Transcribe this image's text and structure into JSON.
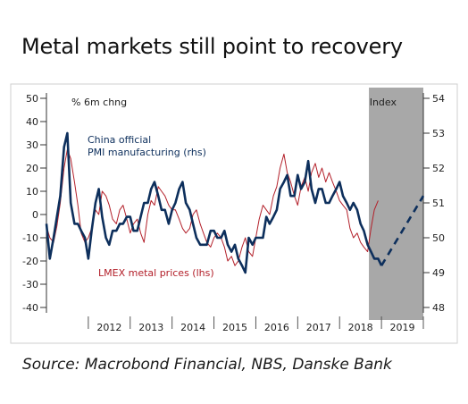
{
  "title": "Metal markets still point to recovery",
  "source": "Source: Macrobond Financial, NBS, Danske Bank",
  "colors": {
    "pmi": "#0d2f5c",
    "lmex": "#b3202a",
    "forecast_band": "#a8a8a8",
    "axis": "#333333"
  },
  "chart_data": {
    "type": "line",
    "left_axis_label": "% 6m chng",
    "right_axis_label": "Index",
    "left_ylim": [
      -40,
      50
    ],
    "left_ticks": [
      50,
      40,
      30,
      20,
      10,
      0,
      -10,
      -20,
      -30,
      -40
    ],
    "right_ylim": [
      48,
      54
    ],
    "right_ticks": [
      54,
      53,
      52,
      51,
      50,
      49,
      48
    ],
    "xlim": [
      2011.0,
      2020.0
    ],
    "x_ticks": [
      "2012",
      "2013",
      "2014",
      "2015",
      "2016",
      "2017",
      "2018",
      "2019"
    ],
    "forecast_band": [
      2018.7,
      2020.0
    ],
    "series": [
      {
        "name": "China official PMI manufacturing (rhs)",
        "axis": "right",
        "style": "solid",
        "points": [
          [
            2011.0,
            50.4
          ],
          [
            2011.08,
            49.4
          ],
          [
            2011.17,
            50.0
          ],
          [
            2011.25,
            50.6
          ],
          [
            2011.33,
            51.2
          ],
          [
            2011.42,
            52.6
          ],
          [
            2011.5,
            53.0
          ],
          [
            2011.58,
            51.0
          ],
          [
            2011.67,
            50.4
          ],
          [
            2011.75,
            50.4
          ],
          [
            2011.83,
            50.2
          ],
          [
            2011.92,
            50.0
          ],
          [
            2012.0,
            49.4
          ],
          [
            2012.08,
            50.2
          ],
          [
            2012.17,
            51.0
          ],
          [
            2012.25,
            51.4
          ],
          [
            2012.33,
            50.6
          ],
          [
            2012.42,
            50.0
          ],
          [
            2012.5,
            49.8
          ],
          [
            2012.58,
            50.2
          ],
          [
            2012.67,
            50.2
          ],
          [
            2012.75,
            50.4
          ],
          [
            2012.83,
            50.4
          ],
          [
            2012.92,
            50.6
          ],
          [
            2013.0,
            50.6
          ],
          [
            2013.08,
            50.2
          ],
          [
            2013.17,
            50.2
          ],
          [
            2013.25,
            50.6
          ],
          [
            2013.33,
            51.0
          ],
          [
            2013.42,
            51.0
          ],
          [
            2013.5,
            51.4
          ],
          [
            2013.58,
            51.6
          ],
          [
            2013.67,
            51.2
          ],
          [
            2013.75,
            50.8
          ],
          [
            2013.83,
            50.8
          ],
          [
            2013.92,
            50.4
          ],
          [
            2014.0,
            50.8
          ],
          [
            2014.08,
            51.0
          ],
          [
            2014.17,
            51.4
          ],
          [
            2014.25,
            51.6
          ],
          [
            2014.33,
            51.0
          ],
          [
            2014.42,
            50.8
          ],
          [
            2014.5,
            50.4
          ],
          [
            2014.58,
            50.0
          ],
          [
            2014.67,
            49.8
          ],
          [
            2014.75,
            49.8
          ],
          [
            2014.83,
            49.8
          ],
          [
            2014.92,
            50.2
          ],
          [
            2015.0,
            50.2
          ],
          [
            2015.08,
            50.0
          ],
          [
            2015.17,
            50.0
          ],
          [
            2015.25,
            50.2
          ],
          [
            2015.33,
            49.8
          ],
          [
            2015.42,
            49.6
          ],
          [
            2015.5,
            49.8
          ],
          [
            2015.58,
            49.4
          ],
          [
            2015.67,
            49.2
          ],
          [
            2015.75,
            49.0
          ],
          [
            2015.83,
            50.0
          ],
          [
            2015.92,
            49.8
          ],
          [
            2016.0,
            50.0
          ],
          [
            2016.08,
            50.0
          ],
          [
            2016.17,
            50.0
          ],
          [
            2016.25,
            50.6
          ],
          [
            2016.33,
            50.4
          ],
          [
            2016.42,
            50.6
          ],
          [
            2016.5,
            50.8
          ],
          [
            2016.58,
            51.4
          ],
          [
            2016.67,
            51.6
          ],
          [
            2016.75,
            51.8
          ],
          [
            2016.83,
            51.2
          ],
          [
            2016.92,
            51.2
          ],
          [
            2017.0,
            51.8
          ],
          [
            2017.08,
            51.4
          ],
          [
            2017.17,
            51.6
          ],
          [
            2017.25,
            52.2
          ],
          [
            2017.33,
            51.4
          ],
          [
            2017.42,
            51.0
          ],
          [
            2017.5,
            51.4
          ],
          [
            2017.58,
            51.4
          ],
          [
            2017.67,
            51.0
          ],
          [
            2017.75,
            51.0
          ],
          [
            2017.83,
            51.2
          ],
          [
            2017.92,
            51.4
          ],
          [
            2018.0,
            51.6
          ],
          [
            2018.08,
            51.2
          ],
          [
            2018.17,
            51.0
          ],
          [
            2018.25,
            50.8
          ],
          [
            2018.33,
            51.0
          ],
          [
            2018.42,
            50.8
          ],
          [
            2018.5,
            50.4
          ],
          [
            2018.58,
            50.2
          ],
          [
            2018.67,
            49.8
          ],
          [
            2018.75,
            49.6
          ],
          [
            2018.83,
            49.4
          ],
          [
            2018.92,
            49.4
          ],
          [
            2019.0,
            49.2
          ]
        ]
      },
      {
        "name": "",
        "axis": "right",
        "style": "dashed",
        "points": [
          [
            2019.0,
            49.2
          ],
          [
            2019.2,
            49.6
          ],
          [
            2019.4,
            50.0
          ],
          [
            2019.6,
            50.4
          ],
          [
            2019.8,
            50.8
          ],
          [
            2020.0,
            51.2
          ]
        ]
      },
      {
        "name": "LMEX metal prices (lhs)",
        "axis": "left",
        "style": "solid",
        "points": [
          [
            2011.0,
            -5
          ],
          [
            2011.08,
            -10
          ],
          [
            2011.17,
            -12
          ],
          [
            2011.25,
            -5
          ],
          [
            2011.33,
            5
          ],
          [
            2011.42,
            20
          ],
          [
            2011.5,
            28
          ],
          [
            2011.58,
            24
          ],
          [
            2011.67,
            14
          ],
          [
            2011.75,
            4
          ],
          [
            2011.83,
            -8
          ],
          [
            2011.92,
            -12
          ],
          [
            2012.0,
            -10
          ],
          [
            2012.08,
            -6
          ],
          [
            2012.17,
            2
          ],
          [
            2012.25,
            0
          ],
          [
            2012.33,
            10
          ],
          [
            2012.42,
            8
          ],
          [
            2012.5,
            4
          ],
          [
            2012.58,
            -2
          ],
          [
            2012.67,
            -4
          ],
          [
            2012.75,
            2
          ],
          [
            2012.83,
            4
          ],
          [
            2012.92,
            -2
          ],
          [
            2013.0,
            -8
          ],
          [
            2013.08,
            -4
          ],
          [
            2013.17,
            -2
          ],
          [
            2013.25,
            -8
          ],
          [
            2013.33,
            -12
          ],
          [
            2013.42,
            0
          ],
          [
            2013.5,
            6
          ],
          [
            2013.58,
            4
          ],
          [
            2013.67,
            12
          ],
          [
            2013.75,
            10
          ],
          [
            2013.83,
            8
          ],
          [
            2013.92,
            4
          ],
          [
            2014.0,
            2
          ],
          [
            2014.08,
            2
          ],
          [
            2014.17,
            -2
          ],
          [
            2014.25,
            -6
          ],
          [
            2014.33,
            -8
          ],
          [
            2014.42,
            -6
          ],
          [
            2014.5,
            0
          ],
          [
            2014.58,
            2
          ],
          [
            2014.67,
            -4
          ],
          [
            2014.75,
            -8
          ],
          [
            2014.83,
            -12
          ],
          [
            2014.92,
            -14
          ],
          [
            2015.0,
            -10
          ],
          [
            2015.08,
            -8
          ],
          [
            2015.17,
            -10
          ],
          [
            2015.25,
            -14
          ],
          [
            2015.33,
            -20
          ],
          [
            2015.42,
            -18
          ],
          [
            2015.5,
            -22
          ],
          [
            2015.58,
            -20
          ],
          [
            2015.67,
            -14
          ],
          [
            2015.75,
            -10
          ],
          [
            2015.83,
            -16
          ],
          [
            2015.92,
            -18
          ],
          [
            2016.0,
            -10
          ],
          [
            2016.08,
            -2
          ],
          [
            2016.17,
            4
          ],
          [
            2016.25,
            2
          ],
          [
            2016.33,
            0
          ],
          [
            2016.42,
            8
          ],
          [
            2016.5,
            12
          ],
          [
            2016.58,
            20
          ],
          [
            2016.67,
            26
          ],
          [
            2016.75,
            18
          ],
          [
            2016.83,
            14
          ],
          [
            2016.92,
            8
          ],
          [
            2017.0,
            4
          ],
          [
            2017.08,
            12
          ],
          [
            2017.17,
            16
          ],
          [
            2017.25,
            10
          ],
          [
            2017.33,
            18
          ],
          [
            2017.42,
            22
          ],
          [
            2017.5,
            16
          ],
          [
            2017.58,
            20
          ],
          [
            2017.67,
            14
          ],
          [
            2017.75,
            18
          ],
          [
            2017.83,
            14
          ],
          [
            2017.92,
            10
          ],
          [
            2018.0,
            6
          ],
          [
            2018.08,
            4
          ],
          [
            2018.17,
            2
          ],
          [
            2018.25,
            -6
          ],
          [
            2018.33,
            -10
          ],
          [
            2018.42,
            -8
          ],
          [
            2018.5,
            -12
          ],
          [
            2018.58,
            -14
          ],
          [
            2018.67,
            -16
          ],
          [
            2018.75,
            -6
          ],
          [
            2018.83,
            2
          ],
          [
            2018.92,
            6
          ]
        ]
      }
    ],
    "annotations": [
      {
        "text": "China official",
        "series": 0
      },
      {
        "text": "PMI manufacturing (rhs)",
        "series": 0
      },
      {
        "text": "LMEX metal prices (lhs)",
        "series": 2
      }
    ]
  }
}
